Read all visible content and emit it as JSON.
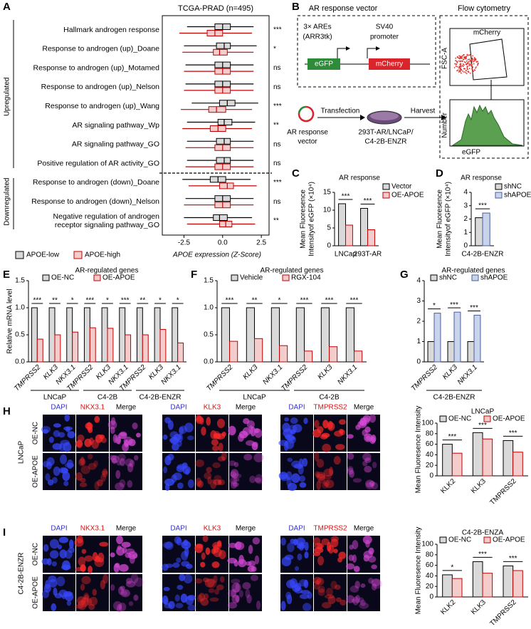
{
  "panel_labels": [
    "A",
    "B",
    "C",
    "D",
    "E",
    "F",
    "G",
    "H",
    "I"
  ],
  "diagram": {
    "title": "AR response vector",
    "are": [
      "3× AREs",
      "(ARR3tk)"
    ],
    "promoter": [
      "SV40",
      "promoter"
    ],
    "genes": [
      "eGFP",
      "mCherry"
    ],
    "steps": [
      "Transfection",
      "Harvest"
    ],
    "vector_label": [
      "AR response",
      "vector"
    ],
    "cells": [
      "293T-AR/LNCaP/",
      "C4-2B-ENZR"
    ],
    "flow": {
      "title": "Flow cytometry",
      "gate": "mCherry",
      "y1": "FSC-A",
      "y2": "Number",
      "x2": "eGFP"
    }
  },
  "images": [
    {
      "side": "LNCaP",
      "rows": [
        "OE-NC",
        "OE-APOE"
      ],
      "columns": [
        "DAPI",
        "NKX3.1",
        "Merge",
        "DAPI",
        "KLK3",
        "Merge",
        "DAPI",
        "TMPRSS2",
        "Merge"
      ]
    },
    {
      "side": "C4-2B-ENZR",
      "rows": [
        "OE-NC",
        "OE-APOE"
      ],
      "columns": [
        "DAPI",
        "NKX3.1",
        "Merge",
        "DAPI",
        "KLK3",
        "Merge",
        "DAPI",
        "TMPRSS2",
        "Merge"
      ]
    }
  ],
  "chart_data": [
    {
      "type": "box",
      "title": "TCGA-PRAD (n=495)",
      "groups": [
        {
          "label": "Upregulated",
          "categories": [
            "Hallmark androgen response",
            "Response to androgen (up)_Doane",
            "Response to androgen (up)_Motamed",
            "Response to androgen (up)_Nelson",
            "Response to androgen (up)_Wang",
            "AR signaling pathway_Wp",
            "AR signaling pathway_GO",
            "Positive regulation of AR activity_GO"
          ]
        },
        {
          "label": "Downregulated",
          "categories": [
            "Response to androgen (down)_Doane",
            "Response to androgen (down)_Nelson",
            [
              "Negative regulation of androgen",
              "receptor signaling pathway_GO"
            ]
          ]
        }
      ],
      "series": [
        {
          "name": "APOE-low",
          "color": "#d9d9d9",
          "edgecolor": "#000000",
          "values": [
            [
              -2.3,
              -0.5,
              0,
              0.5,
              2.0
            ],
            [
              -2.5,
              -0.4,
              0.1,
              0.5,
              2.2
            ],
            [
              -2.4,
              -0.5,
              0,
              0.5,
              2.0
            ],
            [
              -2.4,
              -0.5,
              0,
              0.5,
              2.0
            ],
            [
              -2.0,
              -0.2,
              0.3,
              0.8,
              2.3
            ],
            [
              -2.3,
              -0.3,
              0.1,
              0.6,
              2.1
            ],
            [
              -2.3,
              -0.4,
              0.1,
              0.5,
              2.0
            ],
            [
              -2.3,
              -0.4,
              0.1,
              0.5,
              2.0
            ],
            [
              -2.6,
              -0.8,
              -0.3,
              0.2,
              1.8
            ],
            [
              -2.4,
              -0.5,
              0,
              0.5,
              2.0
            ],
            [
              -2.5,
              -0.6,
              -0.2,
              0.3,
              1.9
            ]
          ]
        },
        {
          "name": "APOE-high",
          "color": "#f4cccc",
          "edgecolor": "#c00000",
          "values": [
            [
              -2.8,
              -1.0,
              -0.5,
              0,
              1.9
            ],
            [
              -2.6,
              -0.6,
              -0.2,
              0.3,
              2.0
            ],
            [
              -2.5,
              -0.5,
              0,
              0.5,
              2.0
            ],
            [
              -2.5,
              -0.5,
              0,
              0.5,
              2.0
            ],
            [
              -2.7,
              -0.9,
              -0.4,
              0.2,
              1.9
            ],
            [
              -2.6,
              -0.8,
              -0.3,
              0.2,
              1.9
            ],
            [
              -2.4,
              -0.5,
              0,
              0.5,
              2.0
            ],
            [
              -2.4,
              -0.5,
              0,
              0.5,
              2.0
            ],
            [
              -2.2,
              -0.2,
              0.3,
              0.7,
              2.2
            ],
            [
              -2.5,
              -0.5,
              0,
              0.5,
              2.0
            ],
            [
              -2.3,
              -0.2,
              0.2,
              0.6,
              2.1
            ]
          ]
        }
      ],
      "significance": [
        "***",
        "*",
        "ns",
        "ns",
        "***",
        "**",
        "ns",
        "ns",
        "***",
        "ns",
        "**"
      ],
      "xlabel": "APOE expression (Z-Score)",
      "xlim": [
        -3.9,
        3.0
      ],
      "xticks": [
        -2.5,
        {
          "value": 0,
          "label": "0.0"
        },
        2.5
      ]
    },
    {
      "type": "bar",
      "title": "AR response",
      "ylabel": [
        "Mean Fluoresence",
        "Intensityof eGFP (×10⁴)"
      ],
      "categories": [
        "LNCap",
        "293T-AR"
      ],
      "series": [
        {
          "name": "Vector",
          "color": "#d9d9d9",
          "edgecolor": "#000000",
          "values": [
            11.8,
            10.5
          ]
        },
        {
          "name": "OE-APOE",
          "color": "#f4cccc",
          "edgecolor": "#c00000",
          "values": [
            5.8,
            4.5
          ]
        }
      ],
      "significance": [
        "***",
        "***"
      ],
      "ylim": [
        0,
        15
      ],
      "yticks": [
        0,
        5,
        10,
        15
      ]
    },
    {
      "type": "bar",
      "title": "AR response",
      "ylabel": [
        "Mean Fluoresence",
        "Intensityof eGFP (×10⁴)"
      ],
      "categories": [
        "C4-2B-ENZR"
      ],
      "series": [
        {
          "name": "shNC",
          "color": "#d9d9d9",
          "edgecolor": "#000000",
          "values": [
            2.1
          ]
        },
        {
          "name": "shAPOE",
          "color": "#c9d3ea",
          "edgecolor": "#4a5f9e",
          "values": [
            2.45
          ]
        }
      ],
      "significance": [
        "***"
      ],
      "ylim": [
        0,
        4
      ],
      "yticks": [
        0,
        1,
        2,
        3,
        4
      ]
    },
    {
      "type": "bar",
      "title": "AR-regulated genes",
      "ylabel": "Relative mRNA level",
      "groups": [
        {
          "label": "LNCaP",
          "categories": [
            "TMPRSS2",
            "KLK3",
            "NKX3.1"
          ]
        },
        {
          "label": "C4-2B",
          "categories": [
            "TMPRSS2",
            "KLK3",
            "NKX3.1"
          ]
        },
        {
          "label": "C4-2B-ENZR",
          "categories": [
            "TMPRSS2",
            "KLK3",
            "NKX3.1"
          ]
        }
      ],
      "series": [
        {
          "name": "OE-NC",
          "color": "#d9d9d9",
          "edgecolor": "#000000",
          "values": [
            1.0,
            1.0,
            1.0,
            1.0,
            1.0,
            1.0,
            1.0,
            1.0,
            1.0
          ]
        },
        {
          "name": "OE-APOE",
          "color": "#f4cccc",
          "edgecolor": "#c00000",
          "values": [
            0.42,
            0.5,
            0.55,
            0.63,
            0.62,
            0.5,
            0.5,
            0.6,
            0.35
          ]
        }
      ],
      "significance": [
        "***",
        "**",
        "*",
        "***",
        "*",
        "***",
        "**",
        "*",
        "*"
      ],
      "ylim": [
        0,
        1.5
      ],
      "yticks": [
        {
          "value": 0,
          "label": "0.0"
        },
        {
          "value": 0.5,
          "label": "0.5"
        },
        {
          "value": 1,
          "label": "1.0"
        },
        {
          "value": 1.5,
          "label": "1.5"
        }
      ]
    },
    {
      "type": "bar",
      "title": "AR-regulated genes",
      "groups": [
        {
          "label": "LNCaP",
          "categories": [
            "TMPRSS2",
            "KLK3",
            "NKX3.1"
          ]
        },
        {
          "label": "C4-2B",
          "categories": [
            "TMPRSS2",
            "KLK3",
            "NKX3.1"
          ]
        }
      ],
      "series": [
        {
          "name": "Vehicle",
          "color": "#d9d9d9",
          "edgecolor": "#000000",
          "values": [
            1.0,
            1.0,
            1.0,
            1.0,
            1.0,
            1.0
          ]
        },
        {
          "name": "RGX-104",
          "color": "#f4cccc",
          "edgecolor": "#c00000",
          "values": [
            0.38,
            0.43,
            0.3,
            0.2,
            0.28,
            0.2
          ]
        }
      ],
      "significance": [
        "***",
        "**",
        "*",
        "***",
        "***",
        "***"
      ],
      "ylim": [
        0,
        1.5
      ],
      "yticks": [
        {
          "value": 0,
          "label": "0.0"
        },
        {
          "value": 0.5,
          "label": "0.5"
        },
        {
          "value": 1,
          "label": "1.0"
        },
        {
          "value": 1.5,
          "label": "1.5"
        }
      ]
    },
    {
      "type": "bar",
      "title": "AR-regulated genes",
      "groups": [
        {
          "label": "C4-2B-ENZR",
          "categories": [
            "TMPRSS2",
            "KLK3",
            "NKX3.1"
          ]
        }
      ],
      "series": [
        {
          "name": "shNC",
          "color": "#d9d9d9",
          "edgecolor": "#000000",
          "values": [
            1.0,
            1.0,
            1.0
          ]
        },
        {
          "name": "shAPOE",
          "color": "#c9d3ea",
          "edgecolor": "#4a5f9e",
          "values": [
            2.4,
            2.45,
            2.3
          ]
        }
      ],
      "significance": [
        "*",
        "***",
        "***"
      ],
      "ylim": [
        0,
        4
      ],
      "yticks": [
        0,
        1,
        2,
        3,
        4
      ]
    },
    {
      "type": "bar",
      "title": "LNCaP",
      "ylabel": "Mean Fluoresence Intensity",
      "categories": [
        "KLK2",
        "KLK3",
        "TMPRSS2"
      ],
      "series": [
        {
          "name": "OE-NC",
          "color": "#d9d9d9",
          "edgecolor": "#000000",
          "values": [
            60,
            82,
            67
          ]
        },
        {
          "name": "OE-APOE",
          "color": "#f4cccc",
          "edgecolor": "#c00000",
          "values": [
            43,
            70,
            45
          ]
        }
      ],
      "significance": [
        "***",
        "***",
        "***"
      ],
      "ylim": [
        0,
        100
      ],
      "yticks": [
        0,
        20,
        40,
        60,
        80,
        100
      ]
    },
    {
      "type": "bar",
      "title": "C4-2B-ENZA",
      "ylabel": "Mean Fluoresence Intensity",
      "categories": [
        "KLK2",
        "KLK3",
        "TMPRSS2"
      ],
      "series": [
        {
          "name": "OE-NC",
          "color": "#d9d9d9",
          "edgecolor": "#000000",
          "values": [
            42,
            67,
            59
          ]
        },
        {
          "name": "OE-APOE",
          "color": "#f4cccc",
          "edgecolor": "#c00000",
          "values": [
            35,
            45,
            50
          ]
        }
      ],
      "significance": [
        "*",
        "***",
        "***"
      ],
      "ylim": [
        0,
        100
      ],
      "yticks": [
        0,
        20,
        40,
        60,
        80,
        100
      ]
    }
  ]
}
